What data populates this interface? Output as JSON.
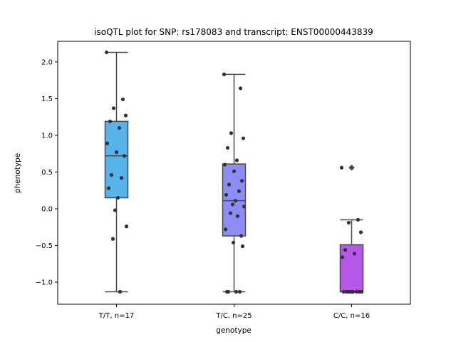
{
  "chart_data": {
    "type": "box",
    "title": "isoQTL plot for SNP: rs178083 and transcript: ENST00000443839",
    "xlabel": "genotype",
    "ylabel": "phenotype",
    "categories": [
      "T/T, n=17",
      "T/C, n=25",
      "C/C, n=16"
    ],
    "ylim": [
      -1.3,
      2.28
    ],
    "yticks": [
      -1.0,
      -0.5,
      0.0,
      0.5,
      1.0,
      1.5,
      2.0
    ],
    "ytick_labels": [
      "−1.0",
      "−0.5",
      "0.0",
      "0.5",
      "1.0",
      "1.5",
      "2.0"
    ],
    "grid": false,
    "legend": "none",
    "colors": {
      "box_fills": [
        "#56b4ea",
        "#8c8cf5",
        "#b558ea"
      ],
      "box_edge": "#4a4a4a",
      "points": "#333333"
    },
    "boxes": [
      {
        "category": "T/T, n=17",
        "q1": 0.15,
        "median": 0.72,
        "q3": 1.19,
        "whisker_low": -1.13,
        "whisker_high": 2.13,
        "outliers": []
      },
      {
        "category": "T/C, n=25",
        "q1": -0.37,
        "median": 0.11,
        "q3": 0.61,
        "whisker_low": -1.13,
        "whisker_high": 1.83,
        "outliers": []
      },
      {
        "category": "C/C, n=16",
        "q1": -1.13,
        "median": -1.13,
        "q3": -0.49,
        "whisker_low": -1.13,
        "whisker_high": -0.15,
        "outliers": [
          0.56
        ]
      }
    ],
    "points": [
      {
        "category": "T/T, n=17",
        "values": [
          2.13,
          1.49,
          1.37,
          1.27,
          1.19,
          1.1,
          0.89,
          0.77,
          0.72,
          0.46,
          0.42,
          0.28,
          0.15,
          -0.02,
          -0.24,
          -0.41,
          -1.13
        ]
      },
      {
        "category": "T/C, n=25",
        "values": [
          1.83,
          1.64,
          1.03,
          0.96,
          0.83,
          0.66,
          0.6,
          0.51,
          0.38,
          0.33,
          0.24,
          0.19,
          0.11,
          0.06,
          0.03,
          -0.06,
          -0.1,
          -0.28,
          -0.37,
          -0.46,
          -0.51,
          -1.13,
          -1.13,
          -1.13,
          -1.13
        ]
      },
      {
        "category": "C/C, n=16",
        "values": [
          0.56,
          -0.15,
          -0.19,
          -0.32,
          -0.56,
          -0.61,
          -0.66,
          -1.13,
          -1.13,
          -1.13,
          -1.13,
          -1.13,
          -1.13,
          -1.13,
          -1.13,
          -1.13
        ]
      }
    ]
  }
}
